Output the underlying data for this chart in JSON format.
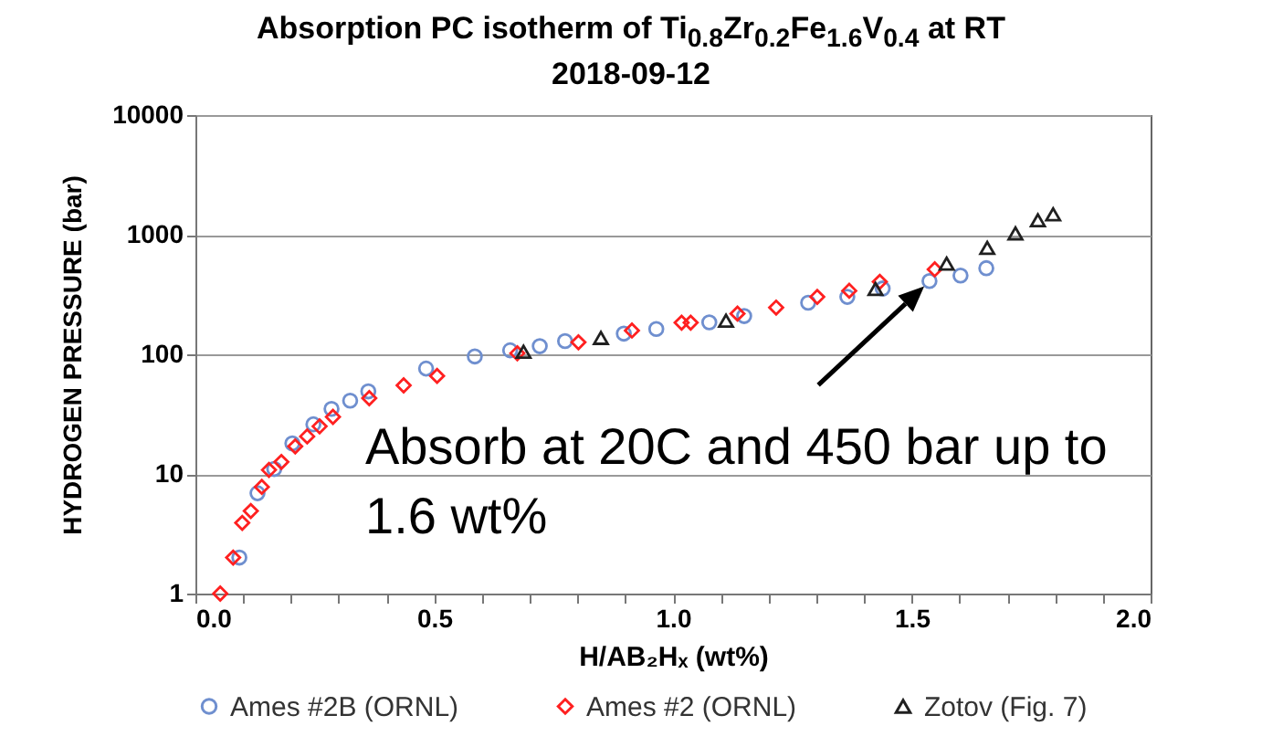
{
  "chart_data": {
    "type": "scatter",
    "title": "Absorption PC isotherm of Ti$_{0.8}$Zr$_{0.2}$Fe$_{1.6}$V$_{0.4}$ at RT",
    "subtitle": "2018-09-12",
    "xlabel": "H/AB₂Hₓ (wt%)",
    "ylabel": "HYDROGEN PRESSURE (bar)",
    "xlim": [
      0,
      2
    ],
    "ylim": [
      1,
      10000
    ],
    "log": "y",
    "xticks": [
      {
        "value": 0,
        "label": "0.0"
      },
      {
        "value": 0.1,
        "label": null
      },
      {
        "value": 0.2,
        "label": null
      },
      {
        "value": 0.3,
        "label": null
      },
      {
        "value": 0.4,
        "label": null
      },
      {
        "value": 0.5,
        "label": "0.5"
      },
      {
        "value": 0.6,
        "label": null
      },
      {
        "value": 0.7,
        "label": null
      },
      {
        "value": 0.8,
        "label": null
      },
      {
        "value": 0.9,
        "label": null
      },
      {
        "value": 1,
        "label": "1.0"
      },
      {
        "value": 1.1,
        "label": null
      },
      {
        "value": 1.2,
        "label": null
      },
      {
        "value": 1.3,
        "label": null
      },
      {
        "value": 1.4,
        "label": null
      },
      {
        "value": 1.5,
        "label": "1.5"
      },
      {
        "value": 1.6,
        "label": null
      },
      {
        "value": 1.7,
        "label": null
      },
      {
        "value": 1.8,
        "label": null
      },
      {
        "value": 1.9,
        "label": null
      },
      {
        "value": 2,
        "label": "2.0"
      }
    ],
    "yticks": [
      1,
      10,
      100,
      1000,
      10000
    ],
    "grid": "y",
    "legend": "bottom",
    "series": [
      {
        "name": "Ames #2B (ORNL)",
        "color": "#6f8fcf",
        "marker": "circle",
        "x": [
          0.092,
          0.13,
          0.165,
          0.203,
          0.247,
          0.285,
          0.324,
          0.362,
          0.483,
          0.585,
          0.659,
          0.721,
          0.774,
          0.897,
          0.965,
          1.076,
          1.149,
          1.283,
          1.365,
          1.439,
          1.537,
          1.602,
          1.656
        ],
        "values": [
          2.0,
          6.9,
          11,
          18,
          26,
          35,
          41,
          49,
          76,
          96,
          108,
          117,
          129,
          149,
          163,
          185,
          209,
          270,
          302,
          355,
          410,
          455,
          525
        ]
      },
      {
        "name": "Ames #2 (ORNL)",
        "color": "#ff2020",
        "marker": "diamond",
        "x": [
          0.052,
          0.079,
          0.098,
          0.116,
          0.139,
          0.154,
          0.18,
          0.209,
          0.234,
          0.26,
          0.288,
          0.364,
          0.436,
          0.506,
          0.674,
          0.802,
          0.914,
          1.018,
          1.037,
          1.135,
          1.216,
          1.302,
          1.369,
          1.433,
          1.548
        ],
        "values": [
          1.0,
          2.0,
          3.9,
          4.9,
          7.8,
          10.8,
          12.6,
          17,
          20.6,
          25,
          30,
          43,
          55,
          66,
          102,
          126,
          158,
          184,
          184,
          219,
          246,
          302,
          340,
          404,
          513
        ]
      },
      {
        "name": "Zotov (Fig. 7)",
        "color": "#202020",
        "marker": "triangle",
        "x": [
          0.687,
          0.849,
          1.111,
          1.424,
          1.573,
          1.658,
          1.717,
          1.764,
          1.796
        ],
        "values": [
          105,
          137,
          191,
          352,
          573,
          777,
          1025,
          1320,
          1480
        ]
      }
    ],
    "annotations": [
      {
        "text": "Absorb at 20C and 450 bar up to 1.6 wt%",
        "x": 1.526,
        "y": 370
      }
    ]
  }
}
